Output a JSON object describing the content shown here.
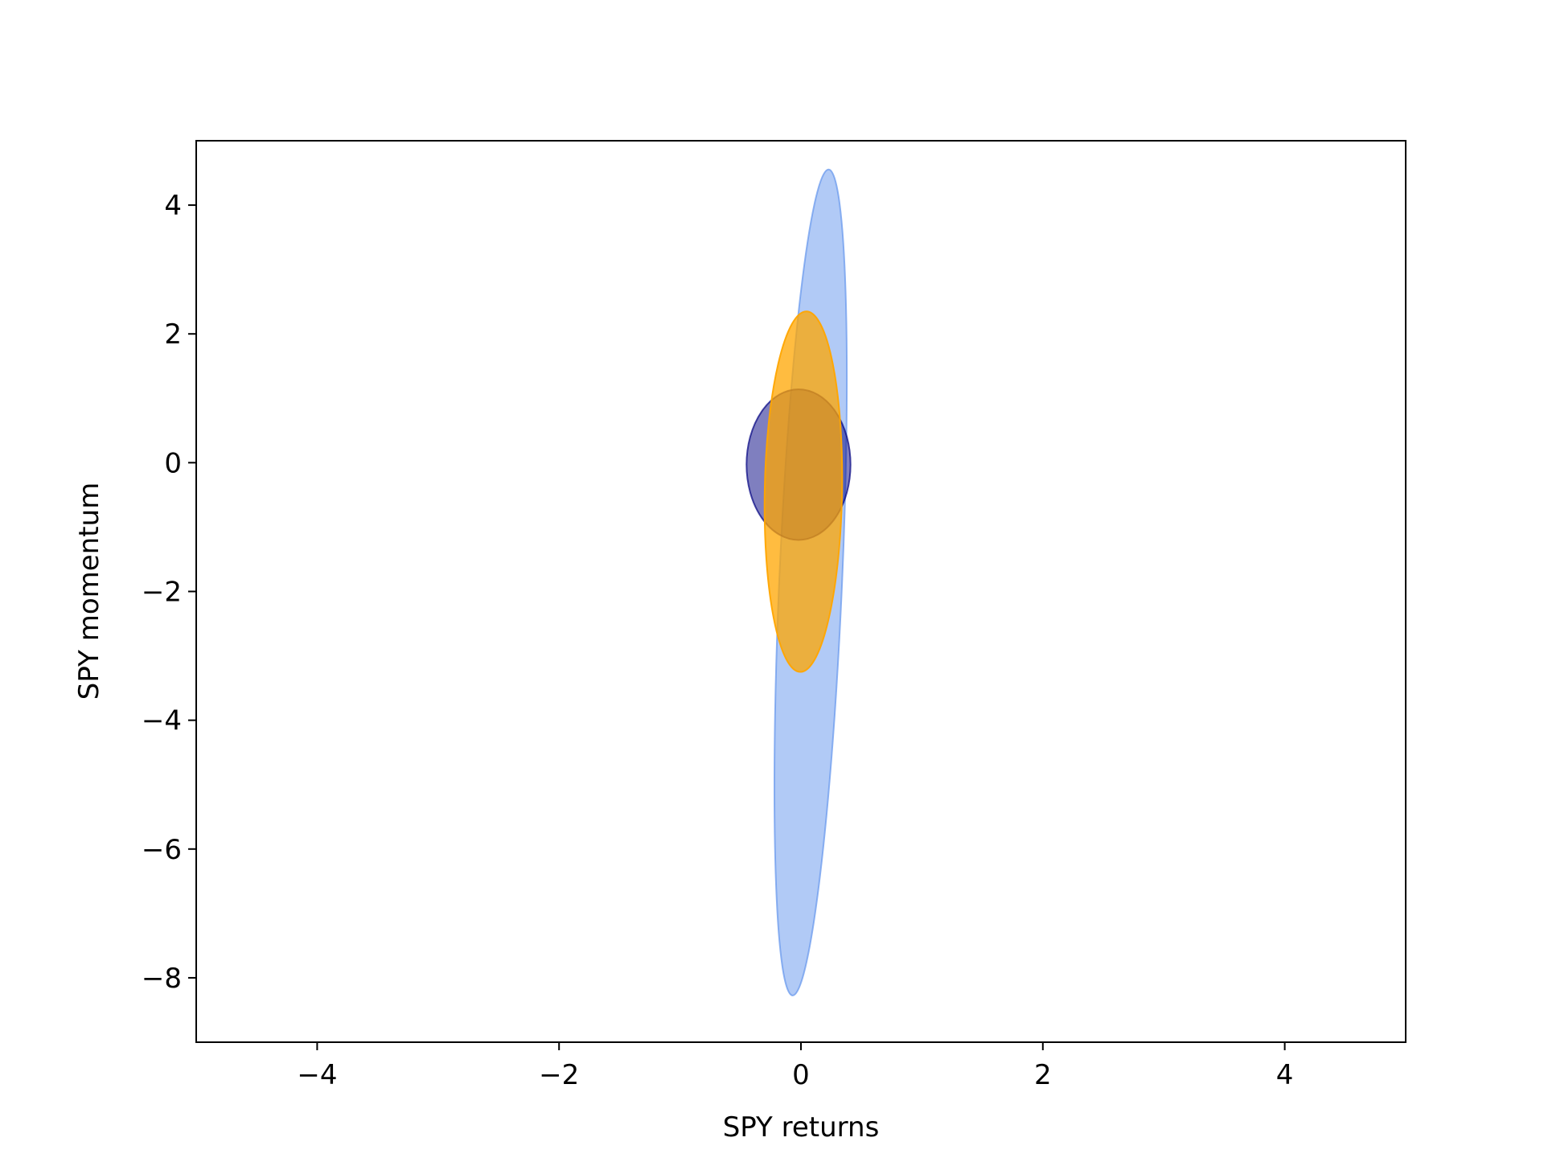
{
  "chart_data": {
    "type": "scatter",
    "title": "",
    "xlabel": "SPY returns",
    "ylabel": "SPY momentum",
    "xlim": [
      -5,
      5
    ],
    "ylim": [
      -9,
      5
    ],
    "xticks": [
      -4,
      -2,
      0,
      2,
      4
    ],
    "yticks": [
      -8,
      -6,
      -4,
      -2,
      0,
      2,
      4
    ],
    "grid": false,
    "legend": "none",
    "series": [
      {
        "shape": "ellipse",
        "center": [
          0.08,
          -1.86
        ],
        "semi_axis_major": 6.42,
        "semi_axis_minor": 0.26,
        "angle_deg_from_vertical": 2.5,
        "fill": "#6495ed",
        "fill_opacity": 0.5
      },
      {
        "shape": "ellipse",
        "center": [
          -0.02,
          -0.03
        ],
        "semi_axis_major": 1.17,
        "semi_axis_minor": 0.43,
        "angle_deg_from_vertical": 0,
        "fill": "#000080",
        "fill_opacity": 0.5
      },
      {
        "shape": "ellipse",
        "center": [
          0.02,
          -0.45
        ],
        "semi_axis_major": 2.8,
        "semi_axis_minor": 0.32,
        "angle_deg_from_vertical": 1.0,
        "fill": "#ffa500",
        "fill_opacity": 0.75
      }
    ]
  }
}
